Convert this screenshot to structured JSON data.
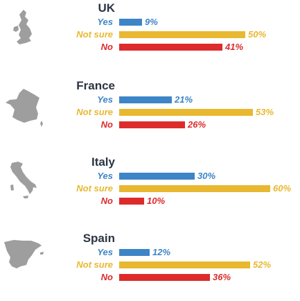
{
  "chart_data": {
    "type": "bar",
    "orientation": "horizontal",
    "grouped_by": "country",
    "groups": [
      {
        "name": "UK",
        "icon": "uk-map-icon",
        "values": {
          "Yes": 9,
          "Not sure": 50,
          "No": 41
        }
      },
      {
        "name": "France",
        "icon": "france-map-icon",
        "values": {
          "Yes": 21,
          "Not sure": 53,
          "No": 26
        }
      },
      {
        "name": "Italy",
        "icon": "italy-map-icon",
        "values": {
          "Yes": 30,
          "Not sure": 60,
          "No": 10
        }
      },
      {
        "name": "Spain",
        "icon": "spain-map-icon",
        "values": {
          "Yes": 12,
          "Not sure": 52,
          "No": 36
        }
      }
    ],
    "categories": [
      "Yes",
      "Not sure",
      "No"
    ],
    "value_suffix": "%",
    "colors": {
      "Yes": "#3d85c6",
      "Not sure": "#e8b830",
      "No": "#dd2b2b",
      "map": "#9e9e9e",
      "country_name": "#2b3441"
    },
    "xlim": [
      0,
      100
    ],
    "grid": false,
    "legend": "none"
  }
}
